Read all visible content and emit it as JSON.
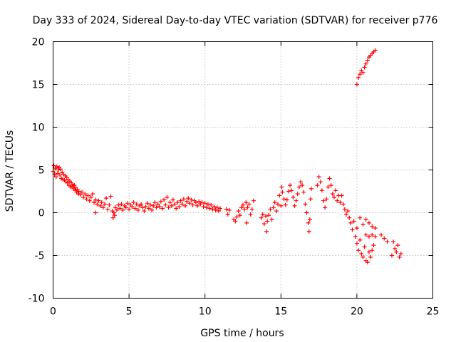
{
  "chart_data": {
    "type": "scatter",
    "title": "Day 333 of 2024, Sidereal Day-to-day VTEC variation (SDTVAR) for receiver p776",
    "xlabel": "GPS time / hours",
    "ylabel": "SDTVAR / TECUs",
    "xlim": [
      0,
      25
    ],
    "ylim": [
      -10,
      20
    ],
    "xticks": [
      0,
      5,
      10,
      15,
      20,
      25
    ],
    "yticks": [
      -10,
      -5,
      0,
      5,
      10,
      15,
      20
    ],
    "xtick_labels": [
      "0",
      "5",
      "10",
      "15",
      "20",
      "25"
    ],
    "ytick_labels": [
      "-10",
      "-5",
      "0",
      "5",
      "10",
      "15",
      "20"
    ],
    "grid": true,
    "marker": "+",
    "color": "#ff0000",
    "series": [
      {
        "name": "SDTVAR",
        "points": [
          [
            0.0,
            4.8
          ],
          [
            0.05,
            5.5
          ],
          [
            0.1,
            4.5
          ],
          [
            0.15,
            5.2
          ],
          [
            0.2,
            4.2
          ],
          [
            0.25,
            5.4
          ],
          [
            0.3,
            4.6
          ],
          [
            0.35,
            5.0
          ],
          [
            0.4,
            5.3
          ],
          [
            0.45,
            4.4
          ],
          [
            0.5,
            5.1
          ],
          [
            0.55,
            4.0
          ],
          [
            0.6,
            4.7
          ],
          [
            0.65,
            3.9
          ],
          [
            0.7,
            4.5
          ],
          [
            0.75,
            3.8
          ],
          [
            0.8,
            4.3
          ],
          [
            0.85,
            3.6
          ],
          [
            0.9,
            4.1
          ],
          [
            0.95,
            3.5
          ],
          [
            1.0,
            3.9
          ],
          [
            1.05,
            3.2
          ],
          [
            1.1,
            3.7
          ],
          [
            1.15,
            3.0
          ],
          [
            1.2,
            3.5
          ],
          [
            1.25,
            3.1
          ],
          [
            1.3,
            3.3
          ],
          [
            1.35,
            2.8
          ],
          [
            1.4,
            3.2
          ],
          [
            1.45,
            2.6
          ],
          [
            1.5,
            2.9
          ],
          [
            1.55,
            2.4
          ],
          [
            1.6,
            2.7
          ],
          [
            1.65,
            2.2
          ],
          [
            1.7,
            2.5
          ],
          [
            1.8,
            2.1
          ],
          [
            1.9,
            2.4
          ],
          [
            2.0,
            1.8
          ],
          [
            2.1,
            2.2
          ],
          [
            2.2,
            1.6
          ],
          [
            2.3,
            2.0
          ],
          [
            2.4,
            1.4
          ],
          [
            2.5,
            1.8
          ],
          [
            2.6,
            2.2
          ],
          [
            2.7,
            1.2
          ],
          [
            2.8,
            1.5
          ],
          [
            2.8,
            0.0
          ],
          [
            2.9,
            1.0
          ],
          [
            3.0,
            1.4
          ],
          [
            3.1,
            0.8
          ],
          [
            3.2,
            1.2
          ],
          [
            3.3,
            0.6
          ],
          [
            3.4,
            1.0
          ],
          [
            3.5,
            1.7
          ],
          [
            3.6,
            0.4
          ],
          [
            3.7,
            0.9
          ],
          [
            3.8,
            1.9
          ],
          [
            3.9,
            0.2
          ],
          [
            3.95,
            -0.6
          ],
          [
            4.0,
            0.0
          ],
          [
            4.05,
            -0.3
          ],
          [
            4.1,
            0.6
          ],
          [
            4.2,
            0.3
          ],
          [
            4.3,
            0.9
          ],
          [
            4.4,
            0.5
          ],
          [
            4.5,
            1.0
          ],
          [
            4.6,
            0.3
          ],
          [
            4.7,
            0.8
          ],
          [
            4.8,
            0.6
          ],
          [
            4.9,
            1.1
          ],
          [
            5.0,
            0.4
          ],
          [
            5.1,
            0.9
          ],
          [
            5.2,
            0.7
          ],
          [
            5.3,
            1.2
          ],
          [
            5.4,
            0.5
          ],
          [
            5.5,
            1.0
          ],
          [
            5.6,
            0.3
          ],
          [
            5.7,
            0.8
          ],
          [
            5.8,
            1.0
          ],
          [
            5.9,
            0.6
          ],
          [
            6.0,
            0.2
          ],
          [
            6.1,
            0.7
          ],
          [
            6.2,
            1.1
          ],
          [
            6.3,
            0.5
          ],
          [
            6.4,
            0.9
          ],
          [
            6.5,
            0.3
          ],
          [
            6.6,
            0.8
          ],
          [
            6.7,
            1.2
          ],
          [
            6.8,
            0.6
          ],
          [
            6.9,
            1.0
          ],
          [
            7.0,
            0.7
          ],
          [
            7.1,
            1.3
          ],
          [
            7.2,
            0.5
          ],
          [
            7.3,
            1.5
          ],
          [
            7.4,
            0.9
          ],
          [
            7.5,
            1.8
          ],
          [
            7.6,
            0.6
          ],
          [
            7.7,
            1.2
          ],
          [
            7.8,
            0.8
          ],
          [
            7.9,
            1.5
          ],
          [
            8.0,
            1.0
          ],
          [
            8.1,
            0.5
          ],
          [
            8.2,
            1.2
          ],
          [
            8.3,
            0.7
          ],
          [
            8.4,
            1.4
          ],
          [
            8.5,
            1.0
          ],
          [
            8.6,
            1.6
          ],
          [
            8.7,
            0.8
          ],
          [
            8.8,
            1.3
          ],
          [
            8.9,
            1.7
          ],
          [
            9.0,
            1.1
          ],
          [
            9.1,
            1.5
          ],
          [
            9.2,
            0.9
          ],
          [
            9.3,
            1.4
          ],
          [
            9.4,
            1.2
          ],
          [
            9.5,
            0.8
          ],
          [
            9.6,
            1.3
          ],
          [
            9.7,
            1.0
          ],
          [
            9.8,
            1.2
          ],
          [
            9.9,
            0.7
          ],
          [
            10.0,
            1.1
          ],
          [
            10.1,
            0.6
          ],
          [
            10.2,
            1.0
          ],
          [
            10.3,
            0.5
          ],
          [
            10.4,
            0.9
          ],
          [
            10.5,
            0.4
          ],
          [
            10.6,
            0.7
          ],
          [
            10.7,
            0.3
          ],
          [
            10.8,
            0.6
          ],
          [
            10.9,
            0.2
          ],
          [
            11.0,
            0.5
          ],
          [
            11.4,
            0.4
          ],
          [
            11.5,
            -0.2
          ],
          [
            11.6,
            0.3
          ],
          [
            11.9,
            -0.8
          ],
          [
            12.0,
            -1.0
          ],
          [
            12.1,
            -0.5
          ],
          [
            12.2,
            0.2
          ],
          [
            12.3,
            -0.3
          ],
          [
            12.4,
            0.6
          ],
          [
            12.5,
            0.9
          ],
          [
            12.6,
            0.4
          ],
          [
            12.7,
            1.2
          ],
          [
            12.75,
            -1.2
          ],
          [
            12.8,
            0.6
          ],
          [
            12.9,
            1.0
          ],
          [
            13.0,
            -0.2
          ],
          [
            13.1,
            0.4
          ],
          [
            13.2,
            1.4
          ],
          [
            13.7,
            -0.6
          ],
          [
            13.8,
            -0.2
          ],
          [
            13.9,
            -1.3
          ],
          [
            14.0,
            -0.4
          ],
          [
            14.05,
            -2.2
          ],
          [
            14.1,
            -1.0
          ],
          [
            14.2,
            -0.3
          ],
          [
            14.3,
            0.4
          ],
          [
            14.4,
            -0.8
          ],
          [
            14.5,
            0.6
          ],
          [
            14.6,
            1.2
          ],
          [
            14.7,
            0.2
          ],
          [
            14.8,
            1.0
          ],
          [
            14.9,
            2.0
          ],
          [
            15.0,
            0.8
          ],
          [
            15.05,
            3.0
          ],
          [
            15.1,
            2.4
          ],
          [
            15.2,
            1.6
          ],
          [
            15.3,
            0.9
          ],
          [
            15.4,
            1.5
          ],
          [
            15.5,
            2.5
          ],
          [
            15.6,
            3.2
          ],
          [
            15.7,
            2.6
          ],
          [
            15.8,
            1.8
          ],
          [
            15.9,
            0.8
          ],
          [
            16.0,
            1.4
          ],
          [
            16.1,
            2.2
          ],
          [
            16.2,
            3.0
          ],
          [
            16.3,
            3.6
          ],
          [
            16.4,
            3.2
          ],
          [
            16.5,
            2.4
          ],
          [
            16.6,
            1.0
          ],
          [
            16.7,
            0.0
          ],
          [
            16.8,
            -1.2
          ],
          [
            16.85,
            -2.2
          ],
          [
            16.9,
            -0.8
          ],
          [
            16.95,
            1.6
          ],
          [
            17.0,
            2.8
          ],
          [
            17.4,
            3.2
          ],
          [
            17.5,
            4.2
          ],
          [
            17.6,
            3.6
          ],
          [
            17.7,
            2.6
          ],
          [
            17.8,
            1.4
          ],
          [
            17.9,
            0.6
          ],
          [
            18.0,
            1.6
          ],
          [
            18.1,
            3.0
          ],
          [
            18.2,
            4.0
          ],
          [
            18.3,
            3.2
          ],
          [
            18.4,
            2.2
          ],
          [
            18.5,
            1.8
          ],
          [
            18.6,
            2.6
          ],
          [
            18.7,
            1.4
          ],
          [
            18.8,
            2.0
          ],
          [
            18.9,
            1.2
          ],
          [
            19.0,
            2.0
          ],
          [
            19.1,
            1.0
          ],
          [
            19.2,
            0.4
          ],
          [
            19.3,
            -0.2
          ],
          [
            19.4,
            0.2
          ],
          [
            19.5,
            -0.6
          ],
          [
            19.6,
            -1.2
          ],
          [
            19.7,
            -2.0
          ],
          [
            19.8,
            -1.0
          ],
          [
            19.9,
            -2.8
          ],
          [
            20.0,
            -3.6
          ],
          [
            20.1,
            -4.4
          ],
          [
            20.2,
            -3.2
          ],
          [
            20.3,
            -4.8
          ],
          [
            20.4,
            -5.2
          ],
          [
            20.5,
            -4.0
          ],
          [
            20.6,
            -5.6
          ],
          [
            20.7,
            -5.8
          ],
          [
            20.8,
            -4.6
          ],
          [
            20.9,
            -5.2
          ],
          [
            21.0,
            -4.4
          ],
          [
            21.1,
            -3.8
          ],
          [
            20.0,
            -1.8
          ],
          [
            20.2,
            -0.6
          ],
          [
            20.4,
            -1.4
          ],
          [
            20.6,
            -2.6
          ],
          [
            20.8,
            -2.8
          ],
          [
            21.0,
            -2.6
          ],
          [
            21.2,
            -2.8
          ],
          [
            20.6,
            -0.8
          ],
          [
            20.8,
            -1.2
          ],
          [
            21.0,
            -1.6
          ],
          [
            21.2,
            -1.8
          ],
          [
            21.6,
            -2.6
          ],
          [
            21.8,
            -3.0
          ],
          [
            22.0,
            -3.4
          ],
          [
            22.3,
            -5.0
          ],
          [
            22.4,
            -3.4
          ],
          [
            22.5,
            -4.2
          ],
          [
            22.6,
            -4.6
          ],
          [
            22.7,
            -3.8
          ],
          [
            22.8,
            -5.2
          ],
          [
            22.9,
            -4.8
          ],
          [
            20.0,
            15.0
          ],
          [
            20.1,
            15.8
          ],
          [
            20.2,
            16.2
          ],
          [
            20.3,
            16.6
          ],
          [
            20.4,
            16.4
          ],
          [
            20.5,
            17.0
          ],
          [
            20.6,
            17.4
          ],
          [
            20.7,
            17.8
          ],
          [
            20.8,
            18.2
          ],
          [
            20.9,
            18.4
          ],
          [
            21.0,
            18.6
          ],
          [
            21.1,
            18.8
          ],
          [
            21.2,
            19.0
          ]
        ]
      }
    ]
  }
}
